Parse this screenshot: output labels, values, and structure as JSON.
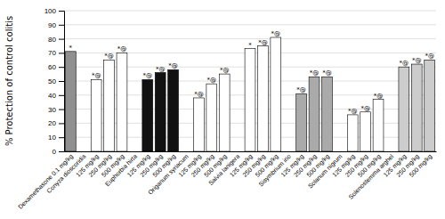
{
  "chart_data": {
    "type": "bar",
    "ylabel": "% Protection of control colitis",
    "categories": [
      "Dexamethasone 0.1 mg/kg",
      "Conyza dioscoridis",
      "125 mg/kg",
      "250 mg/kg",
      "500 mg/kg",
      "Euphorbia hirta",
      "125 mg/kg",
      "250 mg/kg",
      "500 mg/kg",
      "Origanum syriacum",
      "125 mg/kg",
      "250 mg/kg",
      "500 mg/kg",
      "Salvia lanigera",
      "125 mg/kg",
      "250 mg/kg",
      "500 mg/kg",
      "Sisymbrium irio",
      "125 mg/kg",
      "250 mg/kg",
      "500 mg/kg",
      "Solanum nigrum",
      "125 mg/kg",
      "250 mg/kg",
      "500 mg/kg",
      "Solenostemma arghel",
      "125 mg/kg",
      "250 mg/kg",
      "500 mg/kg"
    ],
    "values": [
      71,
      null,
      51,
      65,
      70,
      null,
      51,
      56,
      58,
      null,
      38,
      48,
      55,
      null,
      73,
      75,
      81,
      null,
      41,
      53,
      53,
      null,
      26,
      28,
      37,
      null,
      60,
      62,
      65
    ],
    "colors": [
      "#909090",
      null,
      "#ffffff",
      "#ffffff",
      "#ffffff",
      null,
      "#111111",
      "#111111",
      "#111111",
      null,
      "#ffffff",
      "#ffffff",
      "#ffffff",
      null,
      "#ffffff",
      "#ffffff",
      "#ffffff",
      null,
      "#aaaaaa",
      "#aaaaaa",
      "#aaaaaa",
      null,
      "#ffffff",
      "#ffffff",
      "#ffffff",
      null,
      "#cccccc",
      "#cccccc",
      "#cccccc"
    ],
    "annotations": [
      "*",
      null,
      "*@",
      "*@",
      "*@",
      null,
      "*@",
      "*@",
      "*@",
      null,
      "*@",
      "*@",
      "*@",
      null,
      "*",
      "*@",
      "*@",
      null,
      "*@",
      "*@",
      "*@",
      null,
      "*@",
      "*@",
      "*@",
      null,
      "*@",
      "*@",
      "*@"
    ],
    "ylim": [
      0,
      100
    ],
    "yticks": [
      0,
      10,
      20,
      30,
      40,
      50,
      60,
      70,
      80,
      90,
      100
    ],
    "grid": true
  }
}
